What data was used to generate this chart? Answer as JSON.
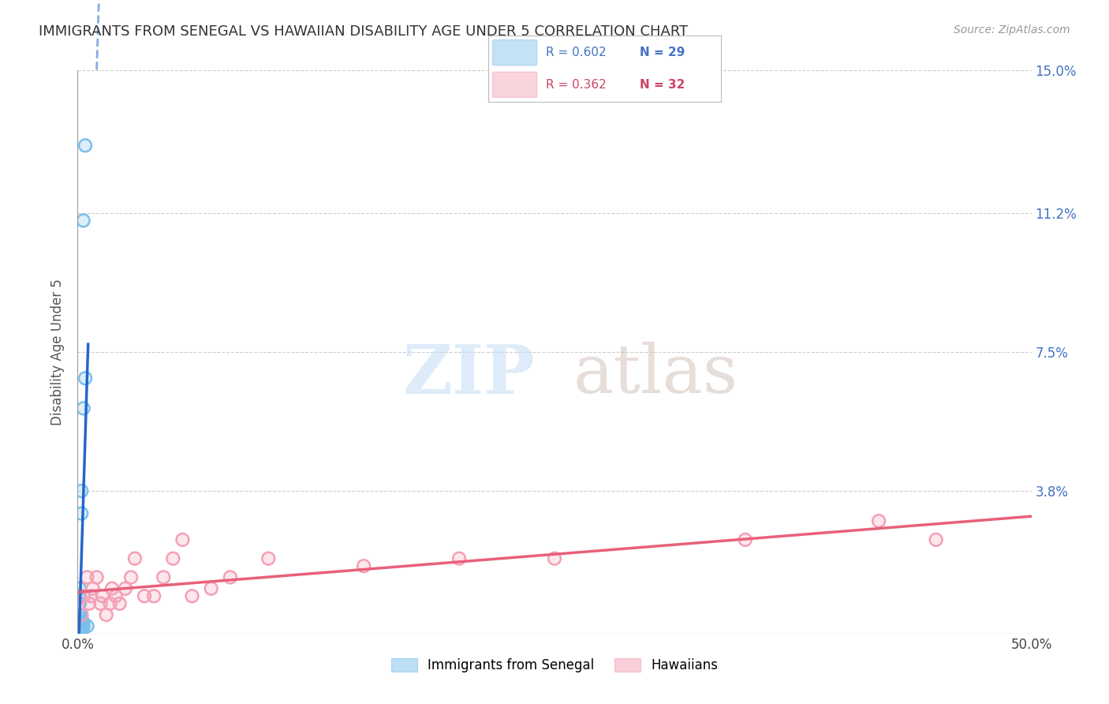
{
  "title": "IMMIGRANTS FROM SENEGAL VS HAWAIIAN DISABILITY AGE UNDER 5 CORRELATION CHART",
  "source": "Source: ZipAtlas.com",
  "ylabel": "Disability Age Under 5",
  "xlim": [
    0.0,
    0.5
  ],
  "ylim": [
    0.0,
    0.15
  ],
  "xtick_vals": [
    0.0,
    0.1,
    0.2,
    0.3,
    0.4,
    0.5
  ],
  "xticklabels": [
    "0.0%",
    "",
    "",
    "",
    "",
    "50.0%"
  ],
  "ytick_vals": [
    0.0,
    0.038,
    0.075,
    0.112,
    0.15
  ],
  "yticklabels_right": [
    "",
    "3.8%",
    "7.5%",
    "11.2%",
    "15.0%"
  ],
  "grid_color": "#cccccc",
  "background_color": "#ffffff",
  "blue_color": "#7dbfed",
  "pink_color": "#f4a0b5",
  "blue_line_color": "#2266cc",
  "pink_line_color": "#e8607a",
  "blue_R": 0.602,
  "blue_N": 29,
  "pink_R": 0.362,
  "pink_N": 32,
  "blue_label": "Immigrants from Senegal",
  "pink_label": "Hawaiians",
  "watermark_zip": "ZIP",
  "watermark_atlas": "atlas",
  "senegal_x": [
    0.0005,
    0.0008,
    0.001,
    0.001,
    0.001,
    0.001,
    0.001,
    0.0015,
    0.002,
    0.002,
    0.002,
    0.002,
    0.0025,
    0.003,
    0.003,
    0.003,
    0.003,
    0.004,
    0.004,
    0.005,
    0.001,
    0.001,
    0.001,
    0.002,
    0.001,
    0.001,
    0.001,
    0.001,
    0.001
  ],
  "senegal_y": [
    0.0,
    0.001,
    0.001,
    0.002,
    0.003,
    0.004,
    0.005,
    0.003,
    0.032,
    0.038,
    0.002,
    0.003,
    0.001,
    0.06,
    0.002,
    0.003,
    0.11,
    0.068,
    0.13,
    0.002,
    0.0,
    0.001,
    0.002,
    0.005,
    0.008,
    0.01,
    0.012,
    0.0,
    0.001
  ],
  "hawaiian_x": [
    0.002,
    0.003,
    0.005,
    0.006,
    0.007,
    0.008,
    0.01,
    0.012,
    0.013,
    0.015,
    0.017,
    0.018,
    0.02,
    0.022,
    0.025,
    0.028,
    0.03,
    0.035,
    0.04,
    0.045,
    0.05,
    0.055,
    0.06,
    0.07,
    0.08,
    0.1,
    0.15,
    0.2,
    0.25,
    0.35,
    0.42,
    0.45
  ],
  "hawaiian_y": [
    0.005,
    0.01,
    0.015,
    0.008,
    0.01,
    0.012,
    0.015,
    0.008,
    0.01,
    0.005,
    0.008,
    0.012,
    0.01,
    0.008,
    0.012,
    0.015,
    0.02,
    0.01,
    0.01,
    0.015,
    0.02,
    0.025,
    0.01,
    0.012,
    0.015,
    0.02,
    0.018,
    0.02,
    0.02,
    0.025,
    0.03,
    0.025
  ]
}
